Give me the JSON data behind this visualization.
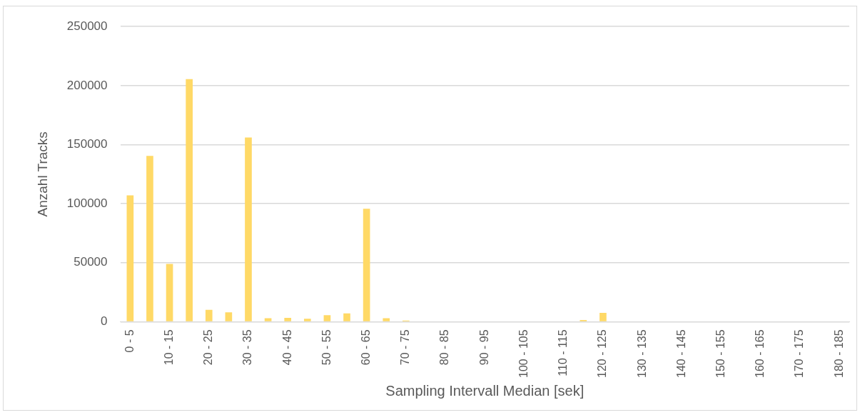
{
  "chart_data": {
    "type": "bar",
    "xlabel": "Sampling Intervall Median [sek]",
    "ylabel": "Anzahl Tracks",
    "categories": [
      "0 - 5",
      null,
      "10 - 15",
      null,
      "20 - 25",
      null,
      "30 - 35",
      null,
      "40 - 45",
      null,
      "50 - 55",
      null,
      "60 - 65",
      null,
      "70 - 75",
      null,
      "80 - 85",
      null,
      "90 - 95",
      null,
      "100 - 105",
      null,
      "110 - 115",
      null,
      "120 - 125",
      null,
      "130 - 135",
      null,
      "140 - 145",
      null,
      "150 - 155",
      null,
      "160 - 165",
      null,
      "170 - 175",
      null,
      "180 - 185"
    ],
    "values": [
      107000,
      140500,
      49000,
      205500,
      10000,
      8000,
      156000,
      3000,
      3200,
      2500,
      5500,
      7000,
      95700,
      3000,
      1000,
      0,
      0,
      0,
      0,
      0,
      0,
      0,
      0,
      1500,
      7500,
      0,
      0,
      0,
      0,
      0,
      0,
      0,
      0,
      0,
      0,
      0,
      0
    ],
    "color": "#ffd966",
    "ylim": [
      0,
      250000
    ],
    "yticks": [
      0,
      50000,
      100000,
      150000,
      200000,
      250000
    ],
    "grid": "y",
    "legend": false
  }
}
